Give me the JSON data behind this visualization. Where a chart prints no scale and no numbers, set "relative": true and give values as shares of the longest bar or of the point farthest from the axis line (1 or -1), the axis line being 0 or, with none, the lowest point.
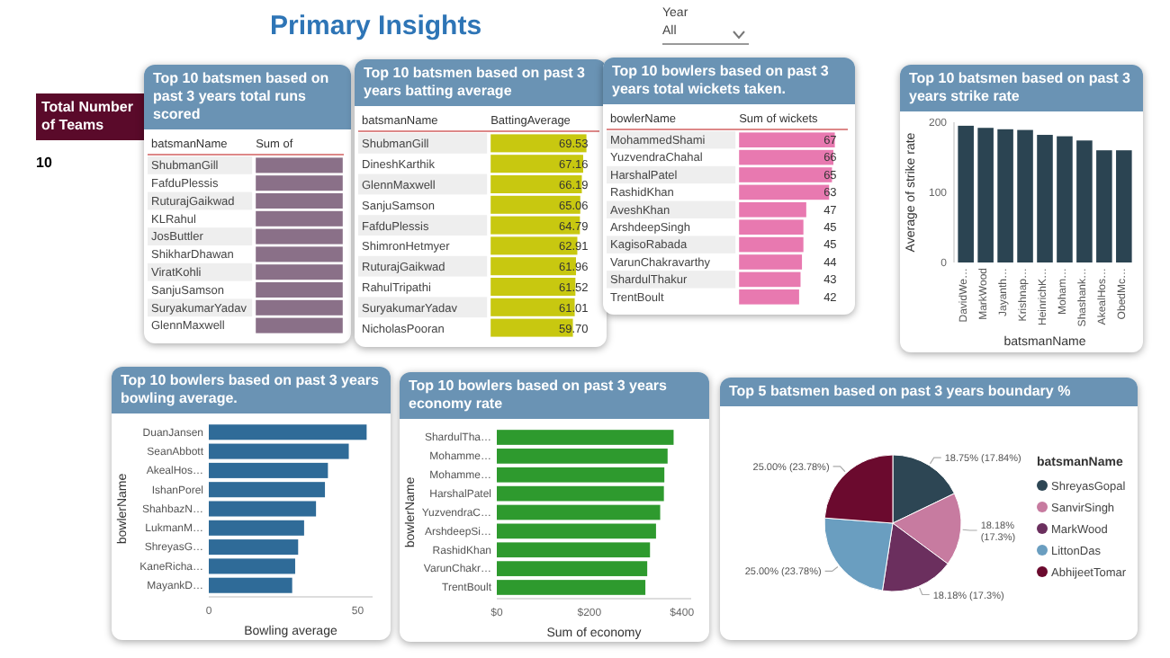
{
  "chart_data": [
    {
      "type": "other",
      "title": "Primary Insights"
    },
    {
      "type": "other",
      "title": "Total Number of Teams",
      "annotations": [
        "10"
      ]
    },
    {
      "type": "other",
      "title": "Year",
      "annotations": [
        "All"
      ]
    },
    {
      "type": "bar",
      "orientation": "horizontal",
      "relative": true,
      "title": "Top 10 batsmen based on past 3 years total runs scored",
      "ylabel": "batsmanName",
      "xlabel": "Sum of",
      "color": "#8a7088",
      "categories": [
        "ShubmanGill",
        "FafduPlessis",
        "RuturajGaikwad",
        "KLRahul",
        "JosButtler",
        "ShikharDhawan",
        "ViratKohli",
        "SanjuSamson",
        "SuryakumarYadav",
        "GlennMaxwell"
      ],
      "values": [
        1,
        1,
        1,
        1,
        1,
        1,
        1,
        1,
        1,
        1
      ]
    },
    {
      "type": "bar",
      "orientation": "horizontal",
      "data_labels": true,
      "title": "Top 10 batsmen based on past 3 years batting average",
      "ylabel": "batsmanName",
      "xlabel": "BattingAverage",
      "color": "#c8c810",
      "categories": [
        "ShubmanGill",
        "DineshKarthik",
        "GlennMaxwell",
        "SanjuSamson",
        "FafduPlessis",
        "ShimronHetmyer",
        "RuturajGaikwad",
        "RahulTripathi",
        "SuryakumarYadav",
        "NicholasPooran"
      ],
      "values": [
        69.53,
        67.16,
        66.19,
        65.06,
        64.79,
        62.91,
        61.96,
        61.52,
        61.01,
        59.7
      ],
      "value_labels": [
        "69.53",
        "67.16",
        "66.19",
        "65.06",
        "64.79",
        "62.91",
        "61.96",
        "61.52",
        "61.01",
        "59.70"
      ]
    },
    {
      "type": "bar",
      "orientation": "horizontal",
      "data_labels": true,
      "title": "Top 10 bowlers based on past 3 years total wickets taken.",
      "ylabel": "bowlerName",
      "xlabel": "Sum of wickets",
      "color": "#e879b0",
      "categories": [
        "MohammedShami",
        "YuzvendraChahal",
        "HarshalPatel",
        "RashidKhan",
        "AveshKhan",
        "ArshdeepSingh",
        "KagisoRabada",
        "VarunChakravarthy",
        "ShardulThakur",
        "TrentBoult"
      ],
      "values": [
        67,
        66,
        65,
        63,
        47,
        45,
        45,
        44,
        43,
        42
      ]
    },
    {
      "type": "bar",
      "title": "Top 10 batsmen based on past 3 years strike rate",
      "xlabel": "batsmanName",
      "ylabel": "Average of strike rate",
      "color": "#2b4452",
      "categories": [
        "DavidWe…",
        "MarkWood",
        "Jayanth…",
        "Krishnap…",
        "HeinrichK…",
        "Moham…",
        "Shashank…",
        "AkealHos…",
        "ObedMc…"
      ],
      "values": [
        195,
        192,
        190,
        189,
        182,
        180,
        174,
        160,
        160
      ],
      "ylim": [
        0,
        200
      ],
      "yticks": [
        0,
        100,
        200
      ]
    },
    {
      "type": "bar",
      "orientation": "horizontal",
      "title": "Top 10 bowlers based on past 3 years bowling average.",
      "ylabel": "bowlerName",
      "xlabel": "Bowling average",
      "color": "#2f6b98",
      "categories": [
        "DuanJansen",
        "SeanAbbott",
        "AkealHos…",
        "IshanPorel",
        "ShahbazN…",
        "LukmanM…",
        "ShreyasG…",
        "KaneRicha…",
        "MayankD…"
      ],
      "values": [
        53,
        47,
        40,
        39,
        36,
        32,
        30,
        29,
        28
      ],
      "xlim": [
        0,
        55
      ],
      "xticks": [
        0,
        50
      ]
    },
    {
      "type": "bar",
      "orientation": "horizontal",
      "title": "Top 10 bowlers based on past 3 years economy rate",
      "ylabel": "bowlerName",
      "xlabel": "Sum of economy",
      "color": "#2e9a2e",
      "categories": [
        "ShardulTha…",
        "Mohamme…",
        "Mohamme…",
        "HarshalPatel",
        "YuzvendraC…",
        "ArshdeepSi…",
        "RashidKhan",
        "VarunChakr…",
        "TrentBoult"
      ],
      "values": [
        382,
        369,
        362,
        361,
        353,
        344,
        331,
        325,
        321
      ],
      "xlim": [
        0,
        420
      ],
      "xticks": [
        {
          "value": 0,
          "label": "$0"
        },
        {
          "value": 200,
          "label": "$200"
        },
        {
          "value": 400,
          "label": "$400"
        }
      ]
    },
    {
      "type": "pie",
      "title": "Top 5 batsmen based on past 3 years boundary %",
      "legend_title": "batsmanName",
      "legend": "right",
      "categories": [
        "ShreyasGopal",
        "SanvirSingh",
        "MarkWood",
        "LittonDas",
        "AbhijeetTomar"
      ],
      "values": [
        18.75,
        18.18,
        18.18,
        25.0,
        25.0
      ],
      "value_labels": [
        "18.75% (17.84%)",
        "18.18% (17.3%)",
        "18.18% (17.3%)",
        "25.00% (23.78%)",
        "25.00% (23.78%)"
      ],
      "colors": [
        "#2d4654",
        "#c77ba0",
        "#6b2f5e",
        "#6a9ec0",
        "#6b0a2e"
      ]
    }
  ]
}
